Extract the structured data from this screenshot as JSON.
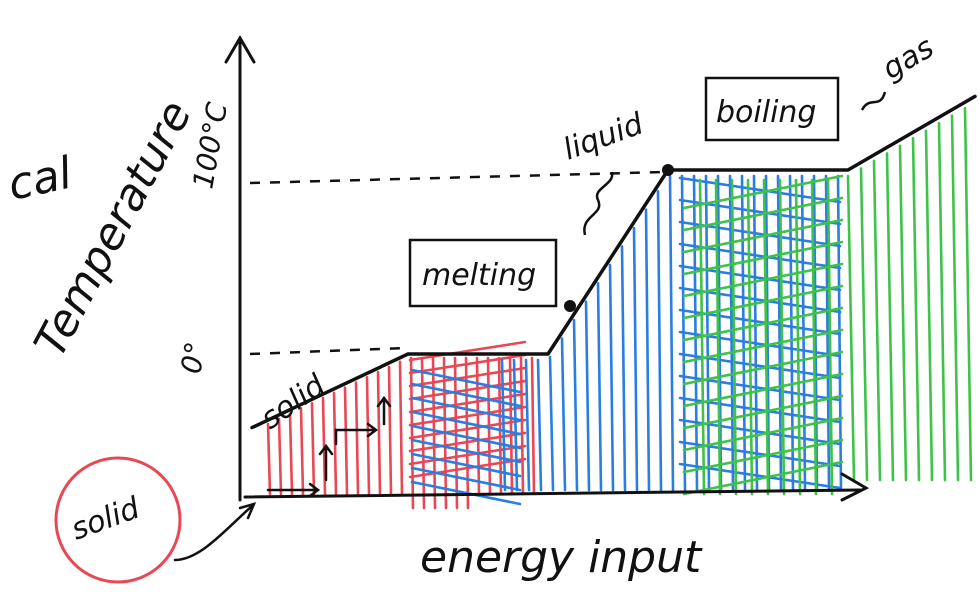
{
  "chart_data": {
    "type": "line",
    "xlabel": "energy input",
    "ylabel": "Temperature",
    "y_ticks": [
      {
        "label": "0°",
        "value": 0
      },
      {
        "label": "100°C",
        "value": 100
      }
    ],
    "series": [
      {
        "points": [
          {
            "x": 0,
            "y": -40
          },
          {
            "x": 1,
            "y": 0
          },
          {
            "x": 2,
            "y": 0
          },
          {
            "x": 3,
            "y": 100
          },
          {
            "x": 4,
            "y": 100
          },
          {
            "x": 5,
            "y": 140
          }
        ]
      }
    ],
    "annotations": {
      "corner": "cal",
      "solid_slope": "solid",
      "melting": "melting",
      "liquid": "liquid",
      "boiling": "boiling",
      "gas": "gas",
      "circled_solid": "solid"
    },
    "colors": {
      "ink": "#111111",
      "solid": "#e84855",
      "liquid": "#2a7de1",
      "gas": "#3fc24a",
      "circle": "#e84855"
    }
  }
}
